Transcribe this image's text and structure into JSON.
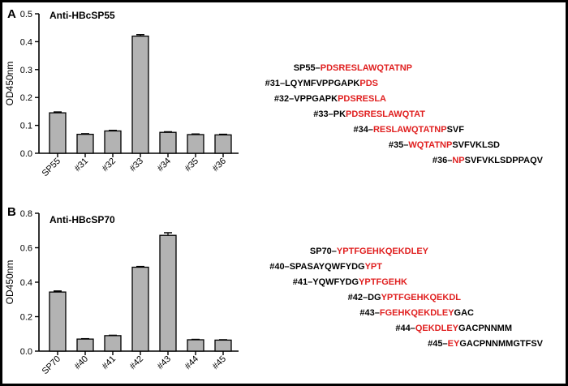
{
  "colors": {
    "bar": "#b3b3b3",
    "black": "#000000",
    "highlight": "#e02020"
  },
  "chart_data": [
    {
      "type": "bar",
      "panel": "A",
      "title": "Anti-HBcSP55",
      "ylabel": "OD450nm",
      "xlabel": "",
      "ylim": [
        0,
        0.5
      ],
      "yticks": [
        "0.0",
        "0.1",
        "0.2",
        "0.3",
        "0.4",
        "0.5"
      ],
      "categories": [
        "SP55",
        "#31",
        "#32",
        "#33",
        "#34",
        "#35",
        "#36"
      ],
      "values": [
        0.145,
        0.068,
        0.08,
        0.42,
        0.075,
        0.067,
        0.066
      ],
      "errors": [
        0.003,
        0.002,
        0.002,
        0.005,
        0.002,
        0.002,
        0.002
      ],
      "sequences": [
        {
          "name": "SP55–",
          "black_pre": "",
          "red": "PDSRESLAWQTATNP",
          "black_post": ""
        },
        {
          "name": "#31–",
          "black_pre": "LQYMFVPPGAPK",
          "red": "PDS",
          "black_post": ""
        },
        {
          "name": "#32–",
          "black_pre": "VPPGAPK",
          "red": "PDSRESLA",
          "black_post": ""
        },
        {
          "name": "#33–",
          "black_pre": "PK",
          "red": "PDSRESLAWQTAT",
          "black_post": ""
        },
        {
          "name": "#34–",
          "black_pre": "",
          "red": "RESLAWQTATNP",
          "black_post": "SVF"
        },
        {
          "name": "#35–",
          "black_pre": "",
          "red": "WQTATNP",
          "black_post": "SVFVKLSD"
        },
        {
          "name": "#36–",
          "black_pre": "",
          "red": "NP",
          "black_post": "SVFVKLSDPPAQV"
        }
      ]
    },
    {
      "type": "bar",
      "panel": "B",
      "title": "Anti-HBcSP70",
      "ylabel": "OD450nm",
      "xlabel": "",
      "ylim": [
        0,
        0.8
      ],
      "yticks": [
        "0.0",
        "0.2",
        "0.4",
        "0.6",
        "0.8"
      ],
      "categories": [
        "SP70",
        "#40",
        "#41",
        "#42",
        "#43",
        "#44",
        "#45"
      ],
      "values": [
        0.343,
        0.07,
        0.09,
        0.487,
        0.672,
        0.066,
        0.064
      ],
      "errors": [
        0.006,
        0.002,
        0.002,
        0.004,
        0.015,
        0.002,
        0.002
      ],
      "sequences": [
        {
          "name": "SP70–",
          "black_pre": "",
          "red": "YPTFGEHKQEKDLEY",
          "black_post": ""
        },
        {
          "name": "#40–",
          "black_pre": "SPASAYQWFYDG",
          "red": "YPT",
          "black_post": ""
        },
        {
          "name": "#41–",
          "black_pre": "YQWFYDG",
          "red": "YPTFGEHK",
          "black_post": ""
        },
        {
          "name": "#42–",
          "black_pre": "DG",
          "red": "YPTFGEHKQEKDL",
          "black_post": ""
        },
        {
          "name": "#43–",
          "black_pre": "",
          "red": "FGEHKQEKDLEY",
          "black_post": "GAC"
        },
        {
          "name": "#44–",
          "black_pre": "",
          "red": "QEKDLEY",
          "black_post": "GACPNNMM"
        },
        {
          "name": "#45–",
          "black_pre": "",
          "red": "EY",
          "black_post": "GACPNNMMGTFSV"
        }
      ]
    }
  ]
}
